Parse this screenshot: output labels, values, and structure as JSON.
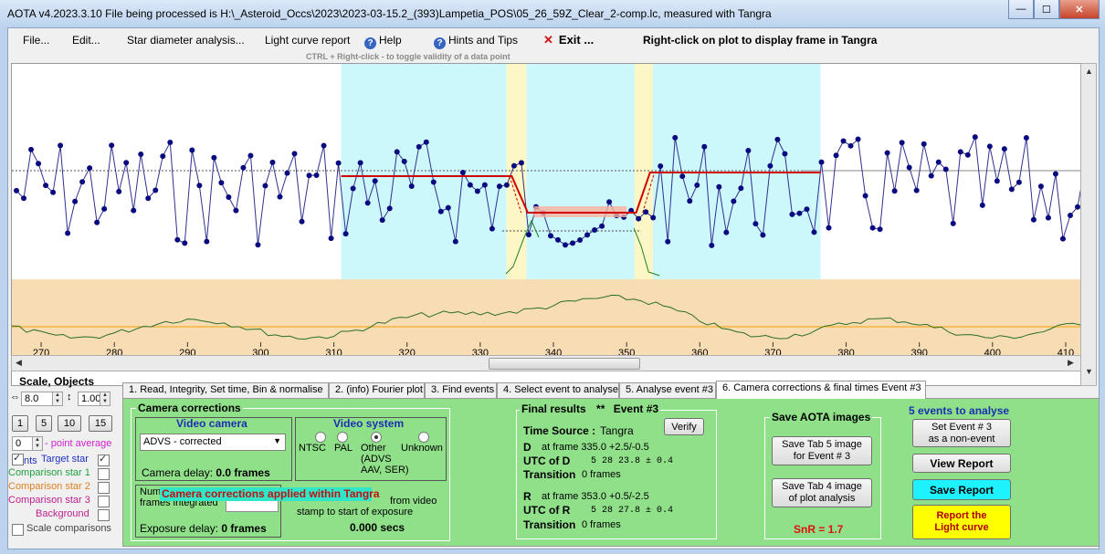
{
  "window": {
    "title": "AOTA v4.2023.3.10     File being processed is H:\\_Asteroid_Occs\\2023\\2023-03-15.2_(393)Lampetia_POS\\05_26_59Z_Clear_2-comp.lc, measured with Tangra",
    "minimize": "—",
    "maximize": "☐",
    "close": "✕"
  },
  "menu": {
    "file": "File...",
    "edit": "Edit...",
    "star_diameter": "Star diameter analysis...",
    "light_curve_report": "Light curve report",
    "help": "Help",
    "hints": "Hints and Tips",
    "exit": "Exit ...",
    "right_click_hint": "Right-click on plot to display frame in Tangra",
    "ctrl_hint": "CTRL + Right-click   -   to toggle validity of a data point"
  },
  "plot": {
    "x_ticks": [
      "270",
      "280",
      "290",
      "300",
      "310",
      "320",
      "330",
      "340",
      "350",
      "360",
      "370",
      "380",
      "390",
      "400",
      "410"
    ],
    "x_range": [
      266,
      412
    ],
    "colors": {
      "cyan": "#ccf7fb",
      "yellow": "#fdf6c6",
      "tan": "#f7dcb4",
      "points": "#0a0a80",
      "model": "#d00000",
      "line": "#303090"
    }
  },
  "left": {
    "scale_label": "Scale,  Objects",
    "scale_value": "8.0",
    "scale_value2": "1.00",
    "btn1": "1",
    "btn5": "5",
    "btn10": "10",
    "btn15": "15",
    "point_avg_value": "0",
    "point_avg_label": "- point average",
    "target_prefix": "nts",
    "target_label": "Target star",
    "comp1": "Comparison star 1",
    "comp2": "Comparison star 2",
    "comp3": "Comparison star 3",
    "background": "Background",
    "scale_comparisons": "Scale comparisons"
  },
  "tabs": [
    "1.  Read, Integrity, Set time, Bin & normalise",
    "2. (info)  Fourier plot",
    "3. Find events",
    "4. Select event to analyse",
    "5. Analyse event #3",
    "6. Camera corrections & final times Event #3"
  ],
  "camera": {
    "group_title": "Camera corrections",
    "video_camera": "Video camera",
    "camera_value": "ADVS - corrected",
    "camera_delay_label": "Camera delay: ",
    "camera_delay_value": "0.0 frames",
    "video_system": "Video system",
    "ntsc": "NTSC",
    "pal": "PAL",
    "other": "Other",
    "other_detail": "(ADVS\nAAV, SER)",
    "unknown": "Unknown",
    "frames_partial": "Num",
    "frames_integrated": "frames integrated",
    "corrections_banner": "Camera corrections applied within Tangra",
    "from_video": "from video",
    "stamp_text": "stamp to start of exposure",
    "secs_value": "0.000 secs",
    "exposure_delay_label": "Exposure delay: ",
    "exposure_delay_value": "0 frames"
  },
  "final": {
    "title": "Final results",
    "asterisks": "**",
    "event": "Event #3",
    "time_source_label": "Time Source :",
    "time_source_value": "Tangra",
    "verify": "Verify",
    "d_label": "D",
    "d_frame": "at frame 335.0  +2.5/-0.5",
    "utc_d_label": "UTC of D",
    "utc_d_value": "5 28 23.8    ± 0.4",
    "transition_label": "Transition",
    "d_transition": "0 frames",
    "r_label": "R",
    "r_frame": "at frame 353.0  +0.5/-2.5",
    "utc_r_label": "UTC of R",
    "utc_r_value": "5 28 27.8    ± 0.4",
    "r_transition": "0 frames"
  },
  "save": {
    "title": "Save AOTA images",
    "tab5": "Save Tab 5 image\nfor Event # 3",
    "tab4": "Save Tab 4 image\nof plot analysis",
    "snr": "SnR = 1.7"
  },
  "events": {
    "title": "5  events to analyse",
    "set_event": "Set Event # 3\nas a non-event",
    "view_report": "View Report",
    "save_report": "Save Report",
    "report_lc": "Report the\nLight curve"
  }
}
